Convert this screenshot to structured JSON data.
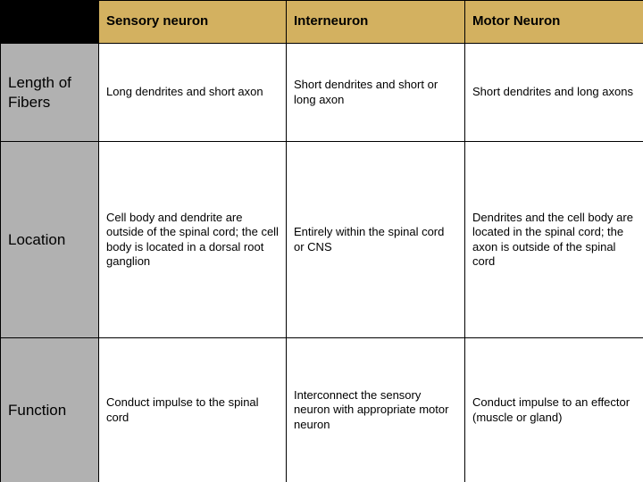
{
  "colors": {
    "header_bg": "#d3b160",
    "rowlabel_bg": "#b1b1b1",
    "cell_bg": "#ffffff",
    "corner_bg": "#000000",
    "text": "#000000",
    "border": "#000000"
  },
  "table": {
    "columns": [
      "Sensory neuron",
      "Interneuron",
      "Motor Neuron"
    ],
    "rows": [
      {
        "label": "Length of Fibers",
        "cells": [
          "Long dendrites and short axon",
          "Short dendrites and short or long axon",
          "Short dendrites and long axons"
        ]
      },
      {
        "label": "Location",
        "cells": [
          "Cell body and dendrite are outside of the spinal cord; the cell body is located in a dorsal root ganglion",
          "Entirely within the spinal cord or CNS",
          "Dendrites and the cell body are located in the spinal cord; the axon is outside of the spinal cord"
        ]
      },
      {
        "label": "Function",
        "cells": [
          "Conduct impulse to the spinal cord",
          "Interconnect the sensory neuron with appropriate motor neuron",
          "Conduct impulse to an effector (muscle or gland)"
        ]
      }
    ]
  }
}
